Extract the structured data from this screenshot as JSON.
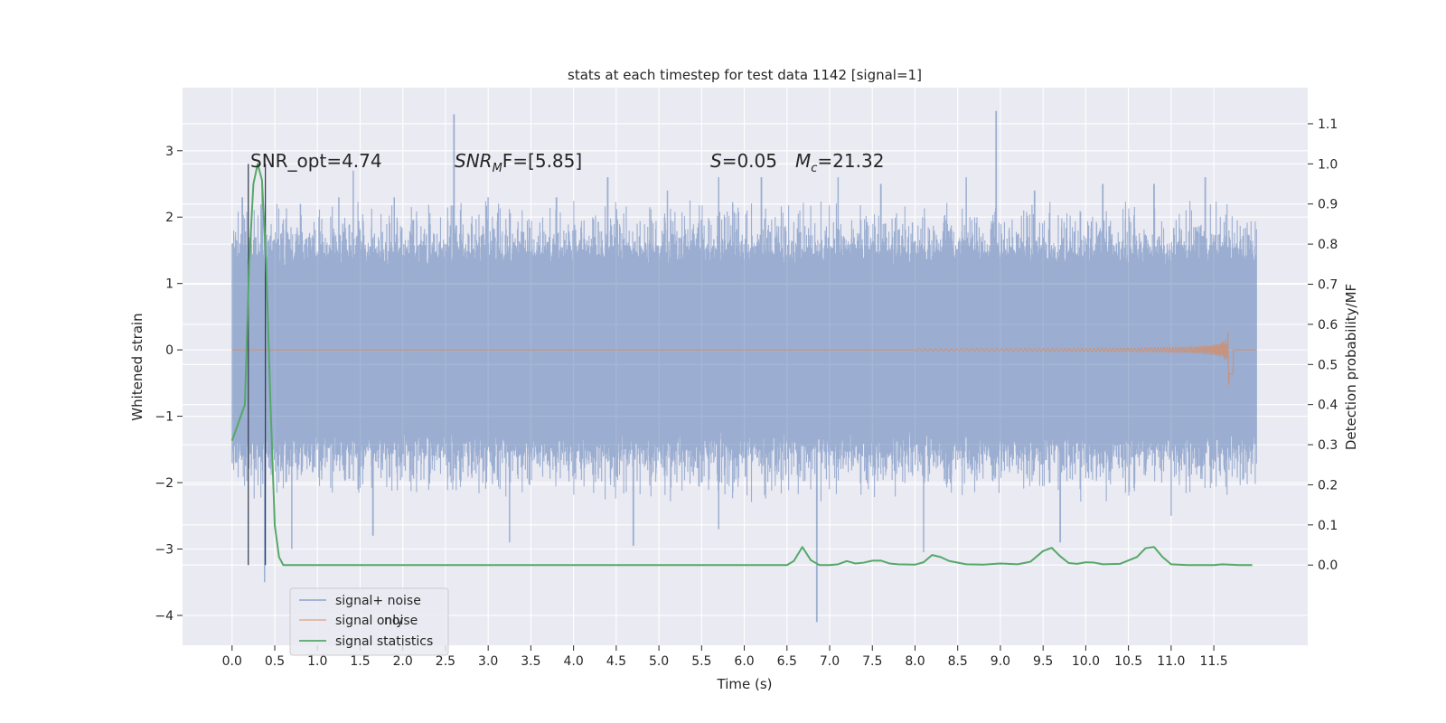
{
  "chart_data": {
    "type": "line",
    "title": "stats at each timestep for test data 1142 [signal=1]",
    "xlabel": "Time (s)",
    "ylabel": "Whitened strain",
    "ylabel_right": "Detection probability/MF",
    "xlim": [
      -0.58,
      12.6
    ],
    "ylim": [
      -4.45,
      3.95
    ],
    "ylim_right": [
      -0.2,
      1.19
    ],
    "x_ticks": [
      "0.0",
      "0.5",
      "1.0",
      "1.5",
      "2.0",
      "2.5",
      "3.0",
      "3.5",
      "4.0",
      "4.5",
      "5.0",
      "5.5",
      "6.0",
      "6.5",
      "7.0",
      "7.5",
      "8.0",
      "8.5",
      "9.0",
      "9.5",
      "10.0",
      "10.5",
      "11.0",
      "11.5"
    ],
    "y_ticks": [
      "3",
      "2",
      "1",
      "0",
      "−1",
      "−2",
      "−3",
      "−4"
    ],
    "y_ticks_right": [
      "1.1",
      "1.0",
      "0.9",
      "0.8",
      "0.7",
      "0.6",
      "0.5",
      "0.4",
      "0.3",
      "0.2",
      "0.1",
      "0.0"
    ],
    "annotations": {
      "snr_opt": "SNR_opt=4.74",
      "snr_mf_label": "SNR",
      "snr_mf_sub": "M",
      "snr_mf_rest": "F=[5.85]",
      "s_label": "S",
      "s_value": "=0.05",
      "mc_label": "M",
      "mc_sub": "c",
      "mc_value": "=21.32"
    },
    "legend": {
      "position": "lower-left",
      "entries": [
        "signal+ noise",
        "signal only",
        "signal statistics"
      ],
      "hidden_text": "noise"
    },
    "colors": {
      "background": "#eaeaf2",
      "grid": "#ffffff",
      "signal_noise": "#4c72b0",
      "signal_only": "#dd8452",
      "statistics": "#55a868",
      "vlines": "#30394a"
    },
    "series": [
      {
        "name": "signal+ noise",
        "duration_s": 12.0,
        "envelope_typical": 1.3,
        "upper_peaks": [
          {
            "t": 0.0,
            "v": 1.6
          },
          {
            "t": 0.12,
            "v": 2.3
          },
          {
            "t": 0.35,
            "v": 2.5
          },
          {
            "t": 0.8,
            "v": 2.2
          },
          {
            "t": 1.25,
            "v": 2.3
          },
          {
            "t": 1.42,
            "v": 2.7
          },
          {
            "t": 1.9,
            "v": 2.3
          },
          {
            "t": 2.6,
            "v": 3.55
          },
          {
            "t": 3.0,
            "v": 2.3
          },
          {
            "t": 3.8,
            "v": 2.3
          },
          {
            "t": 4.4,
            "v": 2.6
          },
          {
            "t": 5.1,
            "v": 2.4
          },
          {
            "t": 5.7,
            "v": 2.6
          },
          {
            "t": 6.2,
            "v": 2.6
          },
          {
            "t": 7.1,
            "v": 2.6
          },
          {
            "t": 7.6,
            "v": 2.5
          },
          {
            "t": 8.6,
            "v": 2.6
          },
          {
            "t": 8.95,
            "v": 3.6
          },
          {
            "t": 9.4,
            "v": 2.4
          },
          {
            "t": 10.2,
            "v": 2.5
          },
          {
            "t": 10.8,
            "v": 2.5
          },
          {
            "t": 11.4,
            "v": 2.6
          }
        ],
        "lower_peaks": [
          {
            "t": 0.38,
            "v": -3.5
          },
          {
            "t": 0.7,
            "v": -3.0
          },
          {
            "t": 1.65,
            "v": -2.8
          },
          {
            "t": 3.25,
            "v": -2.9
          },
          {
            "t": 4.7,
            "v": -2.95
          },
          {
            "t": 5.7,
            "v": -2.7
          },
          {
            "t": 6.85,
            "v": -4.1
          },
          {
            "t": 8.1,
            "v": -3.05
          },
          {
            "t": 9.7,
            "v": -2.9
          },
          {
            "t": 11.0,
            "v": -2.5
          }
        ]
      },
      {
        "name": "signal only",
        "chirp_start_s": 8.0,
        "merger_s": 11.68,
        "peak_amplitude": 0.8
      },
      {
        "name": "signal statistics",
        "x": [
          0.0,
          0.1,
          0.15,
          0.2,
          0.25,
          0.3,
          0.35,
          0.4,
          0.45,
          0.5,
          0.55,
          0.6,
          0.7,
          1.0,
          2.0,
          3.0,
          4.0,
          5.0,
          5.5,
          6.0,
          6.5,
          6.58,
          6.68,
          6.78,
          6.88,
          7.0,
          7.1,
          7.2,
          7.3,
          7.4,
          7.5,
          7.6,
          7.7,
          7.8,
          8.0,
          8.1,
          8.2,
          8.3,
          8.4,
          8.6,
          8.8,
          9.0,
          9.2,
          9.35,
          9.5,
          9.6,
          9.7,
          9.8,
          9.9,
          10.0,
          10.1,
          10.2,
          10.4,
          10.6,
          10.7,
          10.8,
          10.9,
          11.0,
          11.2,
          11.5,
          11.6,
          11.8,
          11.95
        ],
        "values": [
          0.31,
          0.37,
          0.4,
          0.75,
          0.95,
          1.0,
          0.96,
          0.75,
          0.4,
          0.1,
          0.02,
          0.0,
          0.0,
          0.0,
          0.0,
          0.0,
          0.0,
          0.0,
          0.0,
          0.0,
          0.0,
          0.01,
          0.045,
          0.012,
          0.0,
          0.0,
          0.002,
          0.01,
          0.004,
          0.006,
          0.011,
          0.011,
          0.004,
          0.002,
          0.001,
          0.007,
          0.025,
          0.02,
          0.01,
          0.002,
          0.001,
          0.004,
          0.002,
          0.008,
          0.035,
          0.043,
          0.022,
          0.005,
          0.003,
          0.007,
          0.006,
          0.002,
          0.003,
          0.02,
          0.042,
          0.045,
          0.02,
          0.002,
          0.0,
          0.0,
          0.002,
          0.0,
          0.0
        ]
      }
    ],
    "vlines_s": [
      0.19,
      0.39
    ]
  }
}
